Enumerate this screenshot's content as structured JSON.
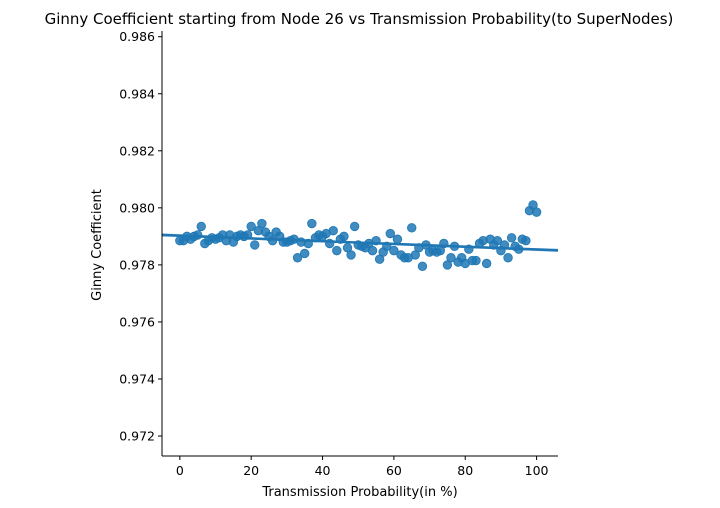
{
  "chart_data": {
    "type": "scatter",
    "title": "Ginny Coefficient starting from Node 26 vs Transmission Probability(to SuperNodes)",
    "xlabel": "Transmission Probability(in %)",
    "ylabel": "Ginny Coefficient",
    "xlim": [
      -5,
      106
    ],
    "ylim": [
      0.9713,
      0.9862
    ],
    "xticks": [
      0,
      20,
      40,
      60,
      80,
      100
    ],
    "xtick_labels": [
      "0",
      "20",
      "40",
      "60",
      "80",
      "100"
    ],
    "yticks": [
      0.972,
      0.974,
      0.976,
      0.978,
      0.98,
      0.982,
      0.984,
      0.986
    ],
    "ytick_labels": [
      "0.972",
      "0.974",
      "0.976",
      "0.978",
      "0.980",
      "0.982",
      "0.984",
      "0.986"
    ],
    "grid": false,
    "legend": "none",
    "colors": {
      "points": "#1f77b4",
      "line": "#1f77b4",
      "band": "#a6c8e4"
    },
    "regression": {
      "x_start": -5,
      "x_end": 106,
      "y_start": 0.97905,
      "y_end": 0.97851,
      "ci_halfwidth_edges": 6e-05
    },
    "points": {
      "x": [
        0,
        1,
        2,
        3,
        4,
        5,
        6,
        7,
        8,
        9,
        10,
        11,
        12,
        13,
        14,
        15,
        16,
        17,
        18,
        19,
        20,
        21,
        22,
        23,
        24,
        25,
        26,
        27,
        28,
        29,
        30,
        31,
        32,
        33,
        34,
        35,
        36,
        37,
        38,
        39,
        40,
        41,
        42,
        43,
        44,
        45,
        46,
        47,
        48,
        49,
        50,
        51,
        52,
        53,
        54,
        55,
        56,
        57,
        58,
        59,
        60,
        61,
        62,
        63,
        64,
        65,
        66,
        67,
        68,
        69,
        70,
        71,
        72,
        73,
        74,
        75,
        76,
        77,
        78,
        79,
        80,
        81,
        82,
        83,
        84,
        85,
        86,
        87,
        88,
        89,
        90,
        91,
        92,
        93,
        94,
        95,
        96,
        97,
        98,
        99,
        100
      ],
      "y": [
        0.97885,
        0.97885,
        0.979,
        0.9789,
        0.979,
        0.97905,
        0.97935,
        0.97875,
        0.97885,
        0.97895,
        0.9789,
        0.97895,
        0.97905,
        0.97885,
        0.97905,
        0.9788,
        0.979,
        0.97905,
        0.979,
        0.97905,
        0.97935,
        0.9787,
        0.9792,
        0.97945,
        0.97915,
        0.979,
        0.97885,
        0.97915,
        0.979,
        0.9788,
        0.9788,
        0.97885,
        0.9789,
        0.97825,
        0.9788,
        0.9784,
        0.97875,
        0.97945,
        0.97895,
        0.97905,
        0.979,
        0.9791,
        0.97875,
        0.9792,
        0.9785,
        0.9789,
        0.979,
        0.9786,
        0.97835,
        0.97935,
        0.9787,
        0.97865,
        0.9786,
        0.97875,
        0.9785,
        0.97885,
        0.9782,
        0.97845,
        0.97865,
        0.9791,
        0.9785,
        0.9789,
        0.97835,
        0.97825,
        0.97825,
        0.9793,
        0.97835,
        0.9786,
        0.97795,
        0.9787,
        0.97845,
        0.9785,
        0.97845,
        0.9785,
        0.97875,
        0.978,
        0.97825,
        0.97865,
        0.9781,
        0.97825,
        0.97805,
        0.97855,
        0.97815,
        0.97815,
        0.97875,
        0.97885,
        0.97805,
        0.9789,
        0.9787,
        0.97885,
        0.9785,
        0.9787,
        0.97825,
        0.97895,
        0.97865,
        0.97855,
        0.9789,
        0.97885,
        0.9799,
        0.9801,
        0.97985
      ]
    }
  }
}
